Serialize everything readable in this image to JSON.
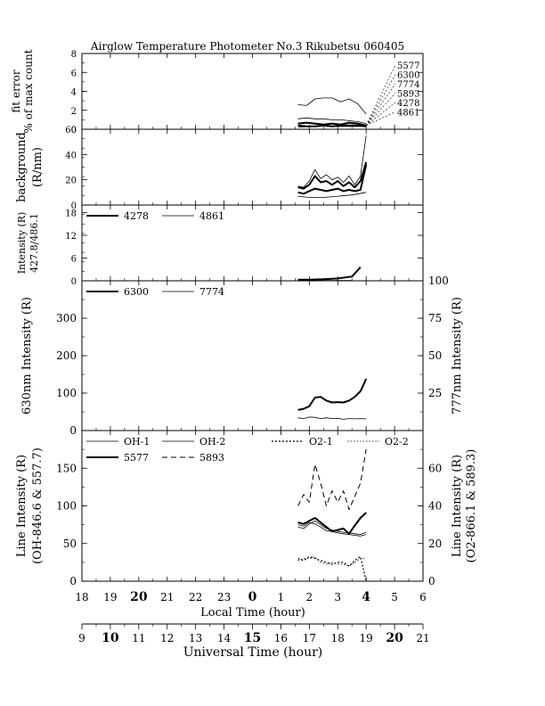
{
  "title": "Airglow Temperature Photometer No.3   Rikubetsu   060405",
  "x_axes": {
    "local": {
      "label": "Local Time (hour)",
      "ticks": [
        "18",
        "19",
        "20",
        "21",
        "22",
        "23",
        "0",
        "1",
        "2",
        "3",
        "4",
        "5",
        "6"
      ]
    },
    "universal": {
      "label": "Universal Time (hour)",
      "ticks": [
        "9",
        "10",
        "11",
        "12",
        "13",
        "14",
        "15",
        "16",
        "17",
        "18",
        "19",
        "20",
        "21"
      ]
    }
  },
  "chart_data": [
    {
      "type": "line",
      "panel": "fit-error",
      "ylabel": [
        "fit error",
        "% of max count"
      ],
      "ylim": [
        0,
        8
      ],
      "yticks": [
        "0",
        "2",
        "4",
        "6",
        "8"
      ],
      "x_units": "local hour (0=18h, 12=06h)",
      "label_order": [
        "5577",
        "6300",
        "7774",
        "5893",
        "4278",
        "4861"
      ],
      "series": [
        {
          "name": "5893",
          "style": "thin",
          "x": [
            7.6,
            7.9,
            8.2,
            8.5,
            8.8,
            9.1,
            9.4,
            9.7,
            10.0
          ],
          "y": [
            2.6,
            2.5,
            3.2,
            3.3,
            3.3,
            2.9,
            3.2,
            2.7,
            1.6
          ]
        },
        {
          "name": "7774",
          "style": "thin",
          "x": [
            7.6,
            7.9,
            8.2,
            8.5,
            8.8,
            9.1,
            9.4,
            9.7,
            10.0
          ],
          "y": [
            1.1,
            1.2,
            1.1,
            1.1,
            1.0,
            1.0,
            0.9,
            0.8,
            0.6
          ]
        },
        {
          "name": "5577",
          "style": "bold",
          "x": [
            7.6,
            7.9,
            8.2,
            8.5,
            8.8,
            9.1,
            9.4,
            9.7,
            10.0
          ],
          "y": [
            0.6,
            0.7,
            0.6,
            0.5,
            0.6,
            0.5,
            0.7,
            0.6,
            0.4
          ]
        },
        {
          "name": "6300",
          "style": "bold",
          "x": [
            7.6,
            7.9,
            8.2,
            8.5,
            8.8,
            9.1,
            9.4,
            9.7,
            10.0
          ],
          "y": [
            0.4,
            0.3,
            0.3,
            0.4,
            0.3,
            0.4,
            0.4,
            0.4,
            0.3
          ]
        },
        {
          "name": "4278",
          "style": "thin",
          "x": [
            7.6,
            8.0,
            8.5,
            9.0,
            9.5,
            10.0
          ],
          "y": [
            0.2,
            0.3,
            0.4,
            0.3,
            0.3,
            0.3
          ]
        }
      ]
    },
    {
      "type": "line",
      "panel": "background",
      "ylabel": [
        "background",
        "(R/nm)"
      ],
      "ylim": [
        0,
        60
      ],
      "yticks": [
        "0",
        "20",
        "40",
        "60"
      ],
      "series": [
        {
          "name": "bg-1",
          "style": "bold",
          "x": [
            7.6,
            7.8,
            8.0,
            8.2,
            8.4,
            8.6,
            8.8,
            9.0,
            9.2,
            9.4,
            9.6,
            9.8,
            10.0
          ],
          "y": [
            10,
            9,
            11,
            13,
            12,
            11,
            12,
            13,
            11,
            12,
            11,
            12,
            32
          ]
        },
        {
          "name": "bg-2",
          "style": "thin",
          "x": [
            7.6,
            7.8,
            8.0,
            8.2,
            8.4,
            8.6,
            8.8,
            9.0,
            9.2,
            9.4,
            9.6,
            9.8,
            10.0
          ],
          "y": [
            15,
            14,
            19,
            28,
            21,
            24,
            20,
            22,
            18,
            23,
            16,
            23,
            55
          ]
        },
        {
          "name": "bg-3",
          "style": "bold",
          "x": [
            7.6,
            7.8,
            8.0,
            8.2,
            8.4,
            8.6,
            8.8,
            9.0,
            9.2,
            9.4,
            9.6,
            9.8,
            10.0
          ],
          "y": [
            14,
            13,
            16,
            23,
            18,
            19,
            16,
            19,
            15,
            18,
            14,
            19,
            34
          ]
        },
        {
          "name": "bg-4",
          "style": "thin",
          "x": [
            7.6,
            8.0,
            8.5,
            9.0,
            9.5,
            10.0
          ],
          "y": [
            7,
            6,
            6,
            7,
            8,
            10
          ]
        }
      ]
    },
    {
      "type": "line",
      "panel": "blue-intensity",
      "ylabel": [
        "Intensity (R)",
        "427.8/486.1"
      ],
      "ylim": [
        0,
        20
      ],
      "yticks": [
        "0",
        "6",
        "12",
        "18"
      ],
      "legend": [
        "4278",
        "4861"
      ],
      "series": [
        {
          "name": "4278",
          "style": "bold",
          "x": [
            7.6,
            8.0,
            8.5,
            9.0,
            9.5,
            9.8
          ],
          "y": [
            0.3,
            0.3,
            0.4,
            0.6,
            1.1,
            3.6
          ]
        },
        {
          "name": "4861",
          "style": "thin",
          "x": [
            7.6,
            8.0,
            8.5,
            9.0,
            9.5
          ],
          "y": [
            0.1,
            0.1,
            0.1,
            0.1,
            0.1
          ]
        }
      ]
    },
    {
      "type": "line",
      "panel": "red-intensity",
      "ylabel": "630nm Intensity (R)",
      "ylabel_right": "777nm Intensity (R)",
      "ylim": [
        0,
        400
      ],
      "ylim_right": [
        0,
        100
      ],
      "yticks": [
        "0",
        "100",
        "200",
        "300"
      ],
      "yticks_right": [
        "25",
        "50",
        "75",
        "100"
      ],
      "legend": [
        "6300",
        "7774"
      ],
      "series": [
        {
          "name": "6300",
          "style": "bold",
          "axis": "left",
          "x": [
            7.6,
            7.8,
            8.0,
            8.2,
            8.4,
            8.6,
            8.8,
            9.0,
            9.2,
            9.4,
            9.6,
            9.8,
            10.0
          ],
          "y": [
            55,
            58,
            65,
            88,
            90,
            80,
            75,
            76,
            75,
            80,
            90,
            105,
            138
          ]
        },
        {
          "name": "7774",
          "style": "thin",
          "axis": "right",
          "x": [
            7.6,
            7.8,
            8.0,
            8.2,
            8.4,
            8.6,
            8.8,
            9.0,
            9.2,
            9.4,
            9.6,
            9.8,
            10.0
          ],
          "y": [
            8.5,
            8.0,
            9.0,
            8.8,
            8.0,
            8.5,
            8.0,
            8.2,
            7.5,
            8.0,
            7.8,
            8.0,
            7.8
          ]
        }
      ]
    },
    {
      "type": "line",
      "panel": "line-intensity",
      "ylabel": [
        "Line Intensity (R)",
        "(OH-846.6 & 557.7)"
      ],
      "ylabel_right": [
        "Line Intensity (R)",
        "(O2-866.1 & 589.3)"
      ],
      "ylim": [
        0,
        200
      ],
      "ylim_right": [
        0,
        80
      ],
      "yticks": [
        "0",
        "50",
        "100",
        "150"
      ],
      "yticks_right": [
        "0",
        "20",
        "40",
        "60"
      ],
      "legend": [
        "OH-1",
        "OH-2",
        "O2-1",
        "O2-2",
        "5577",
        "5893"
      ],
      "series": [
        {
          "name": "OH-1",
          "style": "thin",
          "axis": "left",
          "x": [
            7.6,
            7.8,
            8.0,
            8.2,
            8.4,
            8.6,
            8.8,
            9.0,
            9.2,
            9.4,
            9.6,
            9.8,
            10.0
          ],
          "y": [
            72,
            70,
            76,
            80,
            75,
            70,
            68,
            66,
            65,
            64,
            63,
            62,
            65
          ]
        },
        {
          "name": "OH-2",
          "style": "thin",
          "axis": "left",
          "x": [
            7.6,
            7.8,
            8.0,
            8.2,
            8.4,
            8.6,
            8.8,
            9.0,
            9.2,
            9.4,
            9.6,
            9.8,
            10.0
          ],
          "y": [
            75,
            73,
            78,
            76,
            72,
            67,
            66,
            64,
            63,
            62,
            61,
            60,
            62
          ]
        },
        {
          "name": "5577",
          "style": "bold",
          "axis": "left",
          "x": [
            7.6,
            7.8,
            8.0,
            8.2,
            8.4,
            8.6,
            8.8,
            9.0,
            9.2,
            9.4,
            9.6,
            9.8,
            10.0
          ],
          "y": [
            78,
            76,
            80,
            84,
            78,
            72,
            66,
            68,
            70,
            63,
            74,
            84,
            91
          ]
        },
        {
          "name": "5893",
          "style": "dashed",
          "axis": "right",
          "x": [
            7.6,
            7.8,
            8.0,
            8.2,
            8.4,
            8.6,
            8.8,
            9.0,
            9.2,
            9.4,
            9.6,
            9.8,
            10.0
          ],
          "y": [
            40,
            46,
            42,
            62,
            52,
            40,
            48,
            42,
            48,
            38,
            45,
            52,
            70
          ]
        },
        {
          "name": "O2-1",
          "style": "dotted",
          "axis": "right",
          "x": [
            7.6,
            7.8,
            8.0,
            8.2,
            8.4,
            8.6,
            8.8,
            9.0,
            9.2,
            9.4,
            9.6,
            9.8,
            10.0
          ],
          "y": [
            12,
            11,
            13,
            12,
            11,
            10,
            9,
            10,
            10,
            8,
            11,
            13,
            0
          ]
        },
        {
          "name": "O2-2",
          "style": "dotted-thin",
          "axis": "right",
          "x": [
            7.6,
            7.8,
            8.0,
            8.2,
            8.4,
            8.6,
            8.8,
            9.0,
            9.2,
            9.4,
            9.6,
            9.8,
            10.0
          ],
          "y": [
            11,
            12,
            12,
            13,
            10,
            9,
            10,
            9,
            9,
            8,
            10,
            12,
            12
          ]
        }
      ]
    }
  ]
}
